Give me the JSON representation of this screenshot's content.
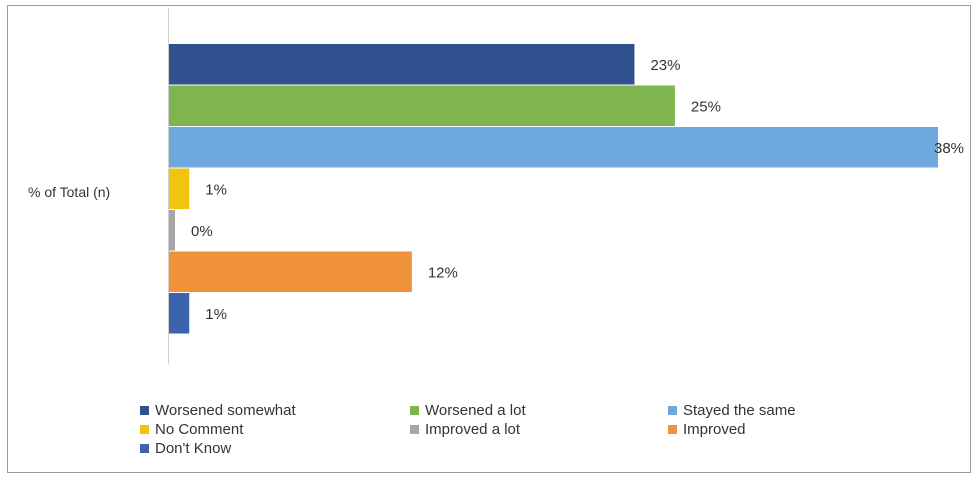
{
  "chart_data": {
    "type": "bar",
    "orientation": "horizontal",
    "categories": [
      "% of Total (n)"
    ],
    "series": [
      {
        "name": "Worsened somewhat",
        "values": [
          23
        ],
        "label": "23%",
        "color": "#2f528f"
      },
      {
        "name": "Worsened a lot",
        "values": [
          25
        ],
        "label": "25%",
        "color": "#7fb54f"
      },
      {
        "name": "Stayed the same",
        "values": [
          38
        ],
        "label": "38%",
        "color": "#6fa8dc"
      },
      {
        "name": "No Comment",
        "values": [
          1
        ],
        "label": "1%",
        "color": "#f1c40f"
      },
      {
        "name": "Improved a lot",
        "values": [
          0
        ],
        "label": "0%",
        "color": "#a6a6a6"
      },
      {
        "name": "Improved",
        "values": [
          12
        ],
        "label": "12%",
        "color": "#f0923a"
      },
      {
        "name": "Don't Know",
        "values": [
          1
        ],
        "label": "1%",
        "color": "#3b64ad"
      }
    ],
    "xlim": [
      0,
      38
    ],
    "grid": false,
    "legend_position": "bottom",
    "title": "",
    "xlabel": "",
    "ylabel": ""
  }
}
